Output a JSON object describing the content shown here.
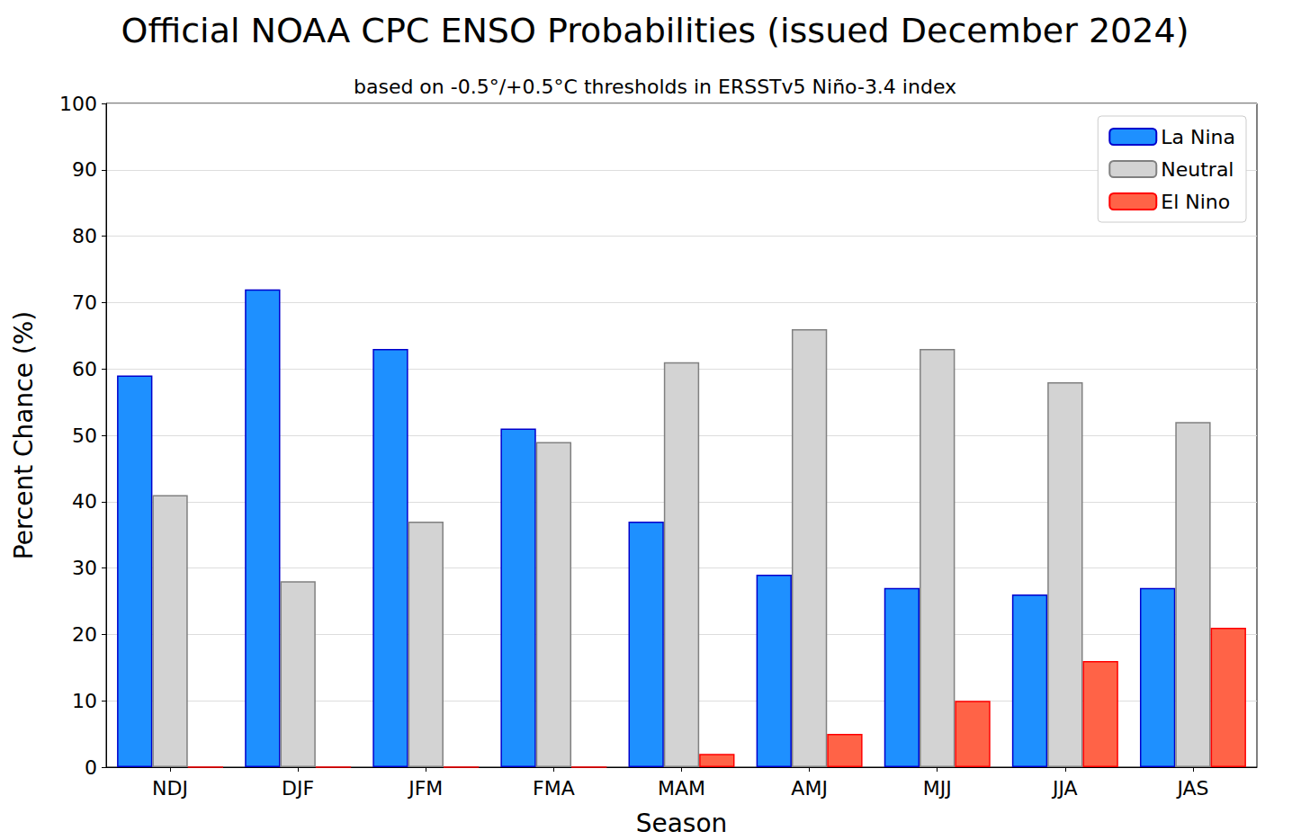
{
  "chart_data": {
    "type": "bar",
    "title": "Official NOAA CPC ENSO Probabilities (issued December 2024)",
    "subtitle": "based on -0.5°/+0.5°C thresholds in ERSSTv5 Niño-3.4 index",
    "x_label": "Season",
    "y_label": "Percent Chance (%)",
    "categories": [
      "NDJ",
      "DJF",
      "JFM",
      "FMA",
      "MAM",
      "AMJ",
      "MJJ",
      "JJA",
      "JAS"
    ],
    "series": [
      {
        "name": "La Nina",
        "color": "#1e90ff",
        "values": [
          59,
          72,
          63,
          51,
          37,
          29,
          27,
          26,
          27
        ]
      },
      {
        "name": "Neutral",
        "color": "#d3d3d3",
        "values": [
          41,
          28,
          37,
          49,
          61,
          66,
          63,
          58,
          52
        ]
      },
      {
        "name": "El Nino",
        "color": "#ff6347",
        "values": [
          0,
          0,
          0,
          0,
          2,
          5,
          10,
          16,
          21
        ]
      }
    ],
    "ylim": [
      0,
      100
    ],
    "yticks": [
      0,
      10,
      20,
      30,
      40,
      50,
      60,
      70,
      80,
      90,
      100
    ],
    "grid": true,
    "legend": "upper right"
  }
}
